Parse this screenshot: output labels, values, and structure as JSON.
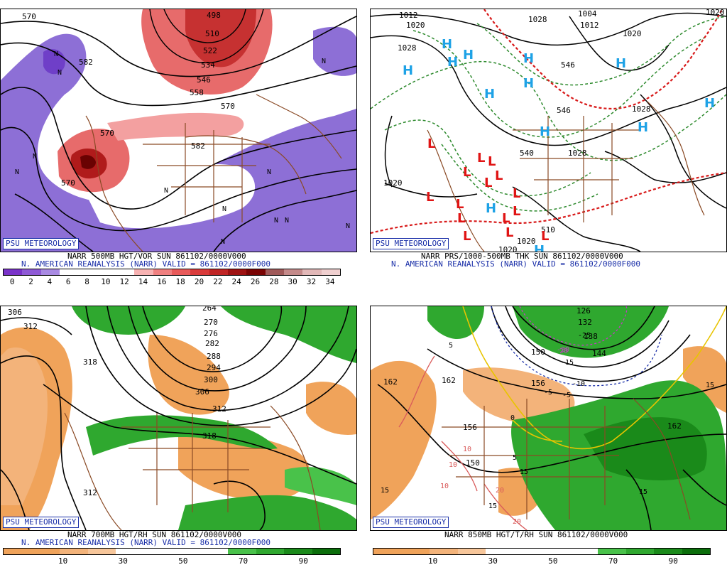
{
  "branding": {
    "badge": "PSU METEOROLOGY"
  },
  "panels": [
    {
      "id": "vor500",
      "caption_line1": "NARR 500MB HGT/VOR SUN 861102/0000V000",
      "caption_line2": "N. AMERICAN REANALYSIS (NARR) VALID = 861102/0000F000",
      "colorbar": {
        "colors": [
          "#7a33c9",
          "#8f5ad6",
          "#a98ae3",
          "#ffffff",
          "#ffffff",
          "#ffffff",
          "#ffffff",
          "#f7b2b2",
          "#f08080",
          "#e85a5a",
          "#d93b3b",
          "#c02525",
          "#9e1212",
          "#7a0404",
          "#a05a5a",
          "#c48a8a",
          "#e2b8b8",
          "#f0d0d0"
        ],
        "ticks": [
          "0",
          "2",
          "4",
          "6",
          "8",
          "10",
          "12",
          "14",
          "16",
          "18",
          "20",
          "22",
          "24",
          "26",
          "28",
          "30",
          "32",
          "34"
        ]
      },
      "contour_labels": [
        "498",
        "510",
        "522",
        "534",
        "546",
        "558",
        "570",
        "570",
        "570",
        "570",
        "582",
        "582"
      ],
      "symbols": [
        "N",
        "N",
        "N",
        "N",
        "N",
        "N",
        "N",
        "N",
        "N",
        "N",
        "N",
        "N"
      ]
    },
    {
      "id": "mslp",
      "caption_line1": "NARR PRS/1000-500MB THK SUN 861102/0000V000",
      "caption_line2": "N. AMERICAN REANALYSIS (NARR) VALID = 861102/0000F000",
      "contour_labels": [
        "1012",
        "1004",
        "1012",
        "1020",
        "1020",
        "1028",
        "1028",
        "1028",
        "1028",
        "1020",
        "1020",
        "1020",
        "1020",
        "540",
        "546",
        "546",
        "510"
      ],
      "highs": [
        "H",
        "H",
        "H",
        "H",
        "H",
        "H",
        "H",
        "H",
        "H",
        "H",
        "H",
        "H",
        "H"
      ],
      "lows": [
        "L",
        "L",
        "L",
        "L",
        "L",
        "L",
        "L",
        "L",
        "L",
        "L",
        "L",
        "L",
        "L",
        "L",
        "L"
      ]
    },
    {
      "id": "rh700",
      "caption_line1": "NARR 700MB HGT/RH SUN 861102/0000V000",
      "caption_line2": "N. AMERICAN REANALYSIS (NARR) VALID = 861102/0000F000",
      "colorbar": {
        "colors": [
          "#f0a35a",
          "#f0a35a",
          "#f3b37a",
          "#f7c69a",
          "#ffffff",
          "#ffffff",
          "#ffffff",
          "#ffffff",
          "#49c24a",
          "#2fa82f",
          "#1a8a1a",
          "#0b6e0b"
        ],
        "ticks": [
          "10",
          "30",
          "50",
          "70",
          "90"
        ]
      },
      "contour_labels": [
        "306",
        "312",
        "318",
        "264",
        "270",
        "276",
        "282",
        "288",
        "294",
        "300",
        "306",
        "312",
        "318",
        "312"
      ]
    },
    {
      "id": "temp850",
      "caption_line1": "NARR 850MB HGT/T/RH SUN 861102/0000V000",
      "colorbar": {
        "colors": [
          "#f0a35a",
          "#f0a35a",
          "#f3b37a",
          "#f7c69a",
          "#ffffff",
          "#ffffff",
          "#ffffff",
          "#ffffff",
          "#49c24a",
          "#2fa82f",
          "#1a8a1a",
          "#0b6e0b"
        ],
        "ticks": [
          "10",
          "30",
          "50",
          "70",
          "90"
        ]
      },
      "contour_labels": [
        "126",
        "132",
        "138",
        "144",
        "150",
        "156",
        "162",
        "162",
        "162",
        "156",
        "150"
      ],
      "temp_labels": [
        "-5",
        "-10",
        "-15",
        "-20",
        "-25",
        "-5",
        "0",
        "5",
        "5",
        "10",
        "10",
        "10",
        "15",
        "15",
        "15",
        "15",
        "15",
        "20",
        "20",
        "20"
      ]
    }
  ]
}
